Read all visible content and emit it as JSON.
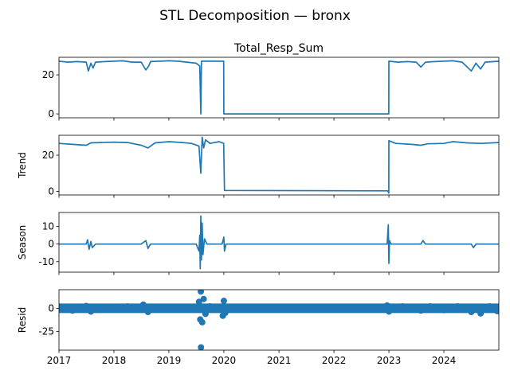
{
  "chart_data": {
    "type": "line",
    "title": "STL Decomposition — bronx",
    "x_ticks": [
      "2017",
      "2018",
      "2019",
      "2020",
      "2021",
      "2022",
      "2023",
      "2024"
    ],
    "xlim": [
      "2017-01-01",
      "2024-12-31"
    ],
    "series_color": "#1f77b4",
    "panels": [
      {
        "name": "observed",
        "title": "Total_Resp_Sum",
        "ylabel": "",
        "ylim": [
          -2,
          29
        ],
        "yticks": [
          0,
          20
        ],
        "style": "line",
        "points": [
          [
            "2017-01-01",
            27.0
          ],
          [
            "2017-03-01",
            26.5
          ],
          [
            "2017-05-01",
            26.8
          ],
          [
            "2017-07-01",
            26.5
          ],
          [
            "2017-07-15",
            22.0
          ],
          [
            "2017-08-01",
            26.0
          ],
          [
            "2017-08-15",
            23.5
          ],
          [
            "2017-09-01",
            26.5
          ],
          [
            "2017-11-01",
            26.8
          ],
          [
            "2018-01-01",
            27.0
          ],
          [
            "2018-03-01",
            27.2
          ],
          [
            "2018-05-01",
            26.5
          ],
          [
            "2018-07-01",
            26.5
          ],
          [
            "2018-08-01",
            22.5
          ],
          [
            "2018-08-20",
            24.5
          ],
          [
            "2018-09-01",
            26.8
          ],
          [
            "2018-11-01",
            27.0
          ],
          [
            "2019-01-01",
            27.2
          ],
          [
            "2019-03-01",
            27.0
          ],
          [
            "2019-05-01",
            26.5
          ],
          [
            "2019-07-01",
            26.0
          ],
          [
            "2019-07-25",
            24.5
          ],
          [
            "2019-08-01",
            0.0
          ],
          [
            "2019-08-05",
            27.0
          ],
          [
            "2019-10-01",
            27.0
          ],
          [
            "2019-12-31",
            27.0
          ],
          [
            "2020-01-01",
            0.0
          ],
          [
            "2022-12-31",
            0.0
          ],
          [
            "2023-01-01",
            27.0
          ],
          [
            "2023-03-01",
            26.5
          ],
          [
            "2023-05-01",
            26.8
          ],
          [
            "2023-07-01",
            26.5
          ],
          [
            "2023-08-01",
            24.0
          ],
          [
            "2023-09-01",
            26.5
          ],
          [
            "2023-11-01",
            26.8
          ],
          [
            "2024-01-01",
            27.0
          ],
          [
            "2024-03-01",
            27.2
          ],
          [
            "2024-05-01",
            26.5
          ],
          [
            "2024-07-01",
            22.0
          ],
          [
            "2024-08-01",
            26.0
          ],
          [
            "2024-09-01",
            23.0
          ],
          [
            "2024-10-01",
            26.5
          ],
          [
            "2024-12-31",
            27.0
          ]
        ]
      },
      {
        "name": "trend",
        "title": "",
        "ylabel": "Trend",
        "ylim": [
          -2,
          31
        ],
        "yticks": [
          0,
          20
        ],
        "style": "line",
        "points": [
          [
            "2017-01-01",
            26.5
          ],
          [
            "2017-04-01",
            26.0
          ],
          [
            "2017-07-01",
            25.5
          ],
          [
            "2017-08-01",
            26.8
          ],
          [
            "2017-10-01",
            27.0
          ],
          [
            "2018-01-01",
            27.2
          ],
          [
            "2018-04-01",
            27.0
          ],
          [
            "2018-07-01",
            25.5
          ],
          [
            "2018-08-15",
            24.0
          ],
          [
            "2018-10-01",
            26.8
          ],
          [
            "2019-01-01",
            27.5
          ],
          [
            "2019-04-01",
            27.0
          ],
          [
            "2019-06-01",
            26.5
          ],
          [
            "2019-07-20",
            25.0
          ],
          [
            "2019-08-01",
            10.0
          ],
          [
            "2019-08-10",
            30.0
          ],
          [
            "2019-08-20",
            24.0
          ],
          [
            "2019-09-01",
            28.5
          ],
          [
            "2019-10-01",
            26.5
          ],
          [
            "2019-12-01",
            27.5
          ],
          [
            "2019-12-31",
            26.5
          ],
          [
            "2020-01-05",
            0.5
          ],
          [
            "2022-12-25",
            0.3
          ],
          [
            "2022-12-31",
            -1.0
          ],
          [
            "2023-01-01",
            28.0
          ],
          [
            "2023-02-15",
            26.5
          ],
          [
            "2023-06-01",
            26.0
          ],
          [
            "2023-08-01",
            25.5
          ],
          [
            "2023-09-15",
            26.3
          ],
          [
            "2024-01-01",
            26.5
          ],
          [
            "2024-03-01",
            27.5
          ],
          [
            "2024-06-01",
            26.8
          ],
          [
            "2024-09-01",
            26.5
          ],
          [
            "2024-12-31",
            27.0
          ]
        ]
      },
      {
        "name": "seasonal",
        "title": "",
        "ylabel": "Season",
        "ylim": [
          -16,
          18
        ],
        "yticks": [
          -10,
          0,
          10
        ],
        "style": "line",
        "points": [
          [
            "2017-01-01",
            0.0
          ],
          [
            "2017-07-01",
            0.0
          ],
          [
            "2017-07-10",
            2.5
          ],
          [
            "2017-07-20",
            -3.0
          ],
          [
            "2017-08-01",
            1.5
          ],
          [
            "2017-08-10",
            -2.0
          ],
          [
            "2017-09-01",
            0.0
          ],
          [
            "2018-07-01",
            0.0
          ],
          [
            "2018-08-01",
            2.0
          ],
          [
            "2018-08-15",
            -2.5
          ],
          [
            "2018-09-01",
            0.0
          ],
          [
            "2019-07-01",
            0.0
          ],
          [
            "2019-07-20",
            -4.0
          ],
          [
            "2019-07-25",
            5.0
          ],
          [
            "2019-07-28",
            -14.0
          ],
          [
            "2019-08-01",
            16.0
          ],
          [
            "2019-08-05",
            -9.0
          ],
          [
            "2019-08-10",
            12.0
          ],
          [
            "2019-08-15",
            -6.0
          ],
          [
            "2019-08-25",
            3.0
          ],
          [
            "2019-09-10",
            0.0
          ],
          [
            "2019-12-20",
            0.0
          ],
          [
            "2020-01-01",
            4.0
          ],
          [
            "2020-01-05",
            -4.0
          ],
          [
            "2020-01-15",
            0.0
          ],
          [
            "2022-12-20",
            0.0
          ],
          [
            "2022-12-28",
            11.0
          ],
          [
            "2023-01-01",
            -11.0
          ],
          [
            "2023-01-05",
            2.0
          ],
          [
            "2023-01-15",
            0.0
          ],
          [
            "2023-08-01",
            0.0
          ],
          [
            "2023-08-15",
            2.0
          ],
          [
            "2023-09-01",
            0.0
          ],
          [
            "2024-07-01",
            0.0
          ],
          [
            "2024-07-15",
            -2.0
          ],
          [
            "2024-08-01",
            0.0
          ],
          [
            "2024-12-31",
            0.0
          ]
        ]
      },
      {
        "name": "resid",
        "title": "",
        "ylabel": "Resid",
        "ylim": [
          -45,
          20
        ],
        "yticks": [
          -25,
          0
        ],
        "style": "markers",
        "points": [
          [
            "2017-01-15",
            0.5
          ],
          [
            "2017-04-01",
            -2.5
          ],
          [
            "2017-07-01",
            2.5
          ],
          [
            "2017-08-01",
            -3.5
          ],
          [
            "2017-10-01",
            1.5
          ],
          [
            "2018-01-01",
            -1.0
          ],
          [
            "2018-04-01",
            2.0
          ],
          [
            "2018-07-15",
            4.0
          ],
          [
            "2018-08-15",
            -4.0
          ],
          [
            "2018-10-01",
            1.0
          ],
          [
            "2019-01-01",
            -1.5
          ],
          [
            "2019-04-01",
            1.5
          ],
          [
            "2019-07-20",
            7.0
          ],
          [
            "2019-07-28",
            -12.0
          ],
          [
            "2019-08-01",
            18.0
          ],
          [
            "2019-08-02",
            -42.0
          ],
          [
            "2019-08-10",
            -15.0
          ],
          [
            "2019-08-20",
            10.0
          ],
          [
            "2019-09-01",
            -6.0
          ],
          [
            "2019-10-01",
            2.0
          ],
          [
            "2019-12-25",
            -8.0
          ],
          [
            "2020-01-01",
            8.0
          ],
          [
            "2020-01-10",
            -5.0
          ],
          [
            "2020-06-01",
            1.0
          ],
          [
            "2021-01-01",
            -1.0
          ],
          [
            "2021-06-01",
            1.0
          ],
          [
            "2022-01-01",
            -1.0
          ],
          [
            "2022-06-01",
            1.0
          ],
          [
            "2022-12-20",
            3.0
          ],
          [
            "2023-01-01",
            -3.5
          ],
          [
            "2023-04-01",
            2.0
          ],
          [
            "2023-08-01",
            -2.5
          ],
          [
            "2023-10-01",
            2.0
          ],
          [
            "2024-01-01",
            -2.0
          ],
          [
            "2024-04-01",
            2.0
          ],
          [
            "2024-07-01",
            -4.0
          ],
          [
            "2024-09-01",
            -5.5
          ],
          [
            "2024-11-01",
            2.0
          ],
          [
            "2024-12-20",
            -3.0
          ]
        ]
      }
    ]
  }
}
